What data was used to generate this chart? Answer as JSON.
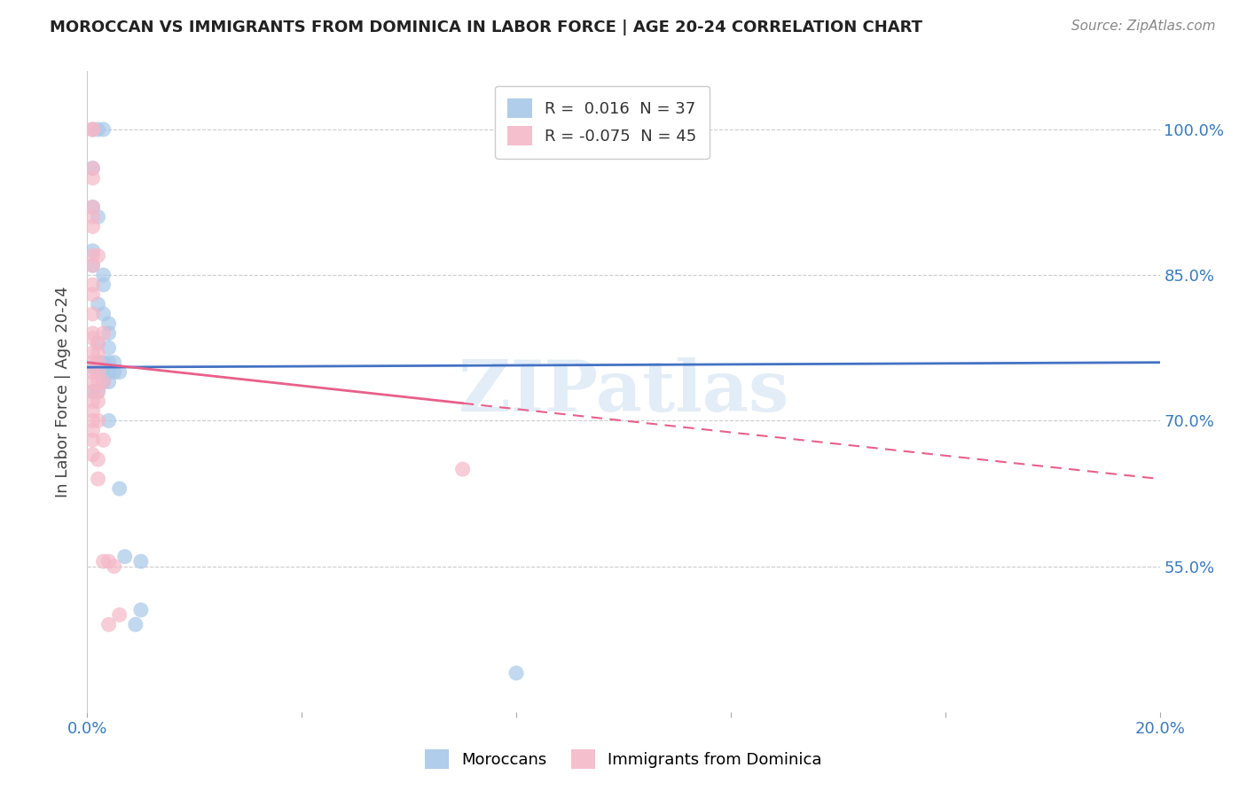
{
  "title": "MOROCCAN VS IMMIGRANTS FROM DOMINICA IN LABOR FORCE | AGE 20-24 CORRELATION CHART",
  "source": "Source: ZipAtlas.com",
  "ylabel": "In Labor Force | Age 20-24",
  "yticks": [
    0.55,
    0.7,
    0.85,
    1.0
  ],
  "ytick_labels": [
    "55.0%",
    "70.0%",
    "85.0%",
    "100.0%"
  ],
  "xmin": 0.0,
  "xmax": 0.2,
  "ymin": 0.4,
  "ymax": 1.06,
  "moroccan_color": "#a8c8e8",
  "dominica_color": "#f4b8c8",
  "moroccan_line_color": "#4472c4",
  "dominica_line_color": "#e8608a",
  "watermark": "ZIPatlas",
  "legend_r1": "R =  0.016",
  "legend_n1": "N = 37",
  "legend_r2": "R = -0.075",
  "legend_n2": "N = 45",
  "moroccan_line_y0": 0.755,
  "moroccan_line_y1": 0.76,
  "dominica_line_y0": 0.76,
  "dominica_line_y1": 0.64,
  "moroccan_points": [
    [
      0.001,
      1.0
    ],
    [
      0.002,
      1.0
    ],
    [
      0.003,
      1.0
    ],
    [
      0.001,
      0.96
    ],
    [
      0.002,
      0.91
    ],
    [
      0.001,
      0.92
    ],
    [
      0.001,
      0.875
    ],
    [
      0.001,
      0.86
    ],
    [
      0.003,
      0.85
    ],
    [
      0.003,
      0.84
    ],
    [
      0.002,
      0.82
    ],
    [
      0.003,
      0.81
    ],
    [
      0.004,
      0.8
    ],
    [
      0.004,
      0.79
    ],
    [
      0.002,
      0.78
    ],
    [
      0.004,
      0.775
    ],
    [
      0.002,
      0.76
    ],
    [
      0.003,
      0.76
    ],
    [
      0.004,
      0.76
    ],
    [
      0.005,
      0.76
    ],
    [
      0.001,
      0.755
    ],
    [
      0.002,
      0.755
    ],
    [
      0.003,
      0.75
    ],
    [
      0.004,
      0.75
    ],
    [
      0.005,
      0.75
    ],
    [
      0.006,
      0.75
    ],
    [
      0.003,
      0.74
    ],
    [
      0.004,
      0.74
    ],
    [
      0.001,
      0.73
    ],
    [
      0.002,
      0.73
    ],
    [
      0.004,
      0.7
    ],
    [
      0.006,
      0.63
    ],
    [
      0.007,
      0.56
    ],
    [
      0.009,
      0.49
    ],
    [
      0.01,
      0.555
    ],
    [
      0.01,
      0.505
    ],
    [
      0.08,
      0.44
    ]
  ],
  "dominica_points": [
    [
      0.001,
      1.0
    ],
    [
      0.001,
      1.0
    ],
    [
      0.001,
      0.96
    ],
    [
      0.001,
      0.95
    ],
    [
      0.001,
      0.92
    ],
    [
      0.001,
      0.91
    ],
    [
      0.001,
      0.9
    ],
    [
      0.001,
      0.87
    ],
    [
      0.001,
      0.86
    ],
    [
      0.001,
      0.84
    ],
    [
      0.001,
      0.83
    ],
    [
      0.002,
      0.87
    ],
    [
      0.001,
      0.81
    ],
    [
      0.001,
      0.79
    ],
    [
      0.001,
      0.785
    ],
    [
      0.002,
      0.78
    ],
    [
      0.001,
      0.77
    ],
    [
      0.002,
      0.77
    ],
    [
      0.001,
      0.76
    ],
    [
      0.002,
      0.76
    ],
    [
      0.001,
      0.75
    ],
    [
      0.002,
      0.75
    ],
    [
      0.001,
      0.74
    ],
    [
      0.002,
      0.74
    ],
    [
      0.001,
      0.73
    ],
    [
      0.002,
      0.73
    ],
    [
      0.001,
      0.72
    ],
    [
      0.002,
      0.72
    ],
    [
      0.001,
      0.71
    ],
    [
      0.001,
      0.7
    ],
    [
      0.002,
      0.7
    ],
    [
      0.001,
      0.69
    ],
    [
      0.001,
      0.68
    ],
    [
      0.001,
      0.665
    ],
    [
      0.002,
      0.66
    ],
    [
      0.002,
      0.64
    ],
    [
      0.003,
      0.79
    ],
    [
      0.003,
      0.74
    ],
    [
      0.003,
      0.68
    ],
    [
      0.003,
      0.555
    ],
    [
      0.004,
      0.555
    ],
    [
      0.004,
      0.49
    ],
    [
      0.005,
      0.55
    ],
    [
      0.006,
      0.5
    ],
    [
      0.07,
      0.65
    ]
  ]
}
